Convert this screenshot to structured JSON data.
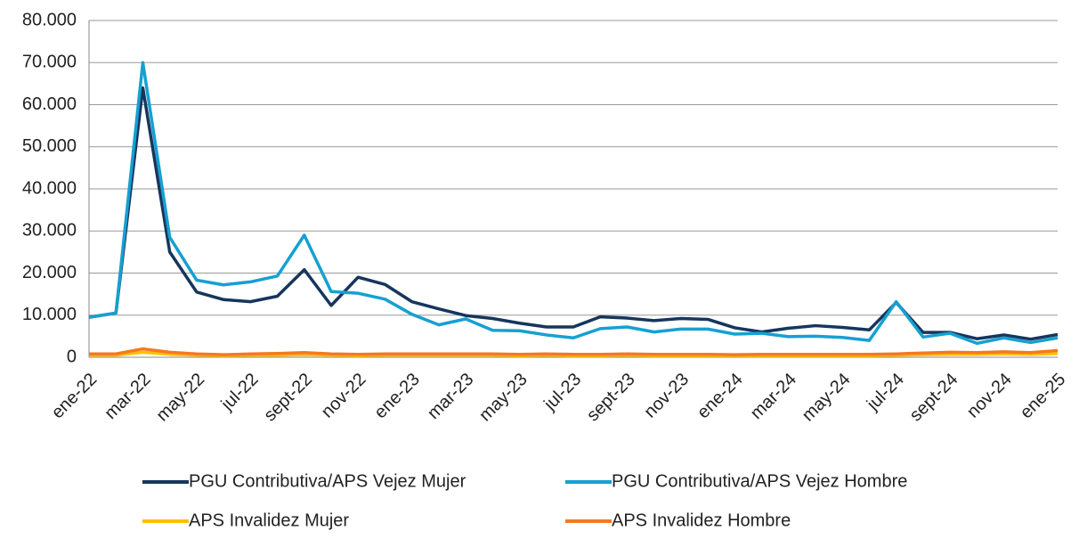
{
  "chart_data": {
    "type": "line",
    "categories": [
      "ene-22",
      null,
      "mar-22",
      null,
      "may-22",
      null,
      "jul-22",
      null,
      "sept-22",
      null,
      "nov-22",
      null,
      "ene-23",
      null,
      "mar-23",
      null,
      "may-23",
      null,
      "jul-23",
      null,
      "sept-23",
      null,
      "nov-23",
      null,
      "ene-24",
      null,
      "mar-24",
      null,
      "may-24",
      null,
      "jul-24",
      null,
      "sept-24",
      null,
      "nov-24",
      null,
      "ene-25"
    ],
    "series": [
      {
        "name": "PGU Contributiva/APS Vejez Mujer",
        "color": "#16365c",
        "values": [
          9500,
          10500,
          64000,
          25000,
          15500,
          13700,
          13200,
          14500,
          20800,
          12300,
          19000,
          17300,
          13200,
          11500,
          9900,
          9200,
          8100,
          7200,
          7200,
          9600,
          9300,
          8700,
          9200,
          9000,
          7000,
          6000,
          6900,
          7500,
          7100,
          6500,
          13000,
          5900,
          5900,
          4400,
          5300,
          4300,
          5400
        ]
      },
      {
        "name": "PGU Contributiva/APS Vejez Hombre",
        "color": "#16a0d2",
        "values": [
          9500,
          10500,
          70000,
          28500,
          18300,
          17200,
          17900,
          19300,
          29000,
          15600,
          15200,
          13800,
          10200,
          7700,
          9100,
          6400,
          6300,
          5300,
          4600,
          6800,
          7200,
          6000,
          6700,
          6700,
          5500,
          5700,
          4900,
          5000,
          4700,
          4000,
          13200,
          4800,
          5700,
          3300,
          4600,
          3500,
          4600
        ]
      },
      {
        "name": "APS Invalidez Mujer",
        "color": "#ffc000",
        "values": [
          500,
          500,
          1200,
          700,
          500,
          400,
          500,
          500,
          600,
          500,
          400,
          500,
          500,
          500,
          500,
          500,
          400,
          500,
          400,
          400,
          500,
          400,
          400,
          400,
          400,
          400,
          400,
          400,
          400,
          400,
          500,
          600,
          700,
          700,
          800,
          700,
          900
        ]
      },
      {
        "name": "APS Invalidez Hombre",
        "color": "#f47920",
        "values": [
          800,
          800,
          2000,
          1200,
          800,
          600,
          800,
          900,
          1100,
          800,
          700,
          800,
          800,
          800,
          800,
          800,
          700,
          800,
          700,
          700,
          800,
          700,
          700,
          700,
          600,
          700,
          700,
          700,
          700,
          700,
          800,
          1000,
          1200,
          1100,
          1300,
          1100,
          1600
        ]
      }
    ],
    "ylim": [
      0,
      80000
    ],
    "yticks": [
      0,
      {
        "value": 10000,
        "label": "10.000"
      },
      {
        "value": 20000,
        "label": "20.000"
      },
      {
        "value": 30000,
        "label": "30.000"
      },
      {
        "value": 40000,
        "label": "40.000"
      },
      {
        "value": 50000,
        "label": "50.000"
      },
      {
        "value": 60000,
        "label": "60.000"
      },
      {
        "value": 70000,
        "label": "70.000"
      },
      {
        "value": 80000,
        "label": "80.000"
      }
    ],
    "grid": true
  }
}
